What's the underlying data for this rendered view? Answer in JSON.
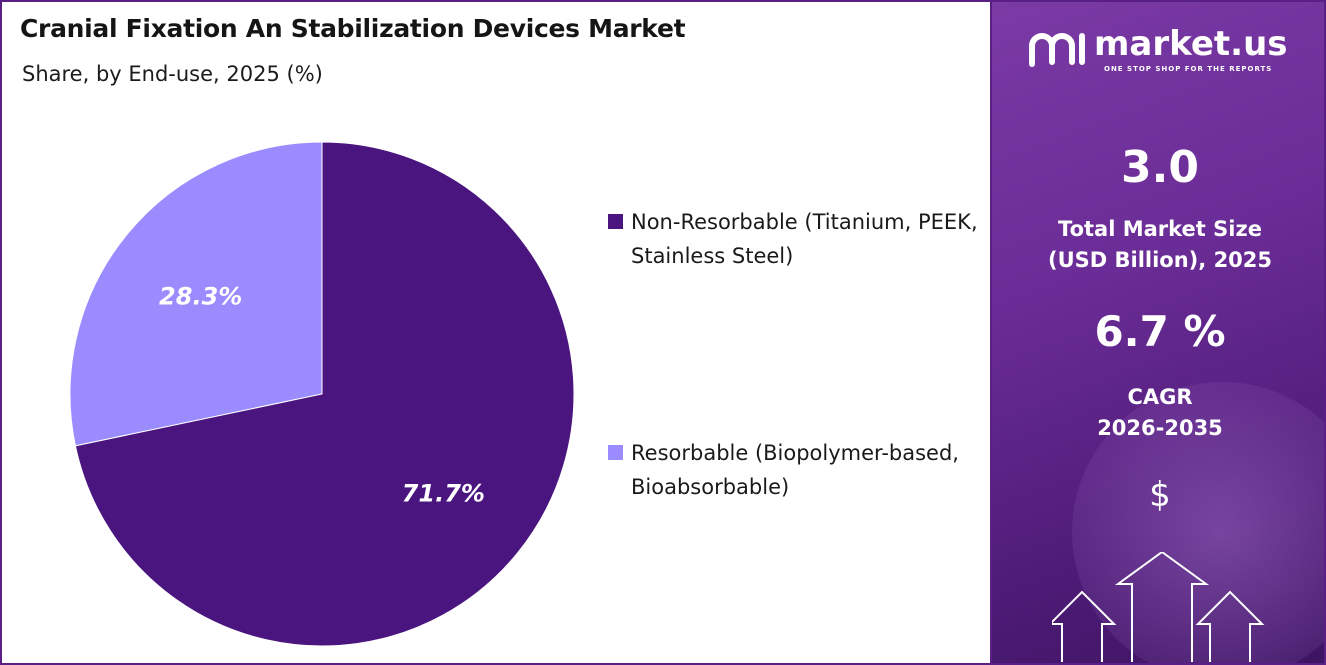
{
  "title": "Cranial Fixation An Stabilization Devices Market",
  "subtitle": "Share, by End-use, 2025 (%)",
  "colors": {
    "non_resorbable": "#4b1580",
    "resorbable": "#9a8cff",
    "panel": "#6a2c96"
  },
  "legend": [
    {
      "label": "Non-Resorbable (Titanium, PEEK, Stainless Steel)",
      "color": "#4b1580"
    },
    {
      "label": "Resorbable (Biopolymer-based, Bioabsorbable)",
      "color": "#9a8cff"
    }
  ],
  "chart_data": {
    "type": "pie",
    "title": "Cranial Fixation An Stabilization Devices Market",
    "subtitle": "Share, by End-use, 2025 (%)",
    "categories": [
      "Non-Resorbable (Titanium, PEEK, Stainless Steel)",
      "Resorbable (Biopolymer-based, Bioabsorbable)"
    ],
    "values": [
      71.7,
      28.3
    ],
    "labels": [
      "71.7%",
      "28.3%"
    ],
    "colors": [
      "#4b1580",
      "#9a8cff"
    ],
    "legend_position": "right"
  },
  "sidebar": {
    "brand": "market.us",
    "tagline": "ONE STOP SHOP FOR THE REPORTS",
    "market_size_value": "3.0",
    "market_size_label": "Total Market Size (USD Billion), 2025",
    "cagr_value": "6.7 %",
    "cagr_label": "CAGR",
    "cagr_period": "2026-2035",
    "currency_symbol": "$",
    "icons": [
      "logo-icon",
      "dollar-icon",
      "growth-arrows-icon"
    ]
  }
}
